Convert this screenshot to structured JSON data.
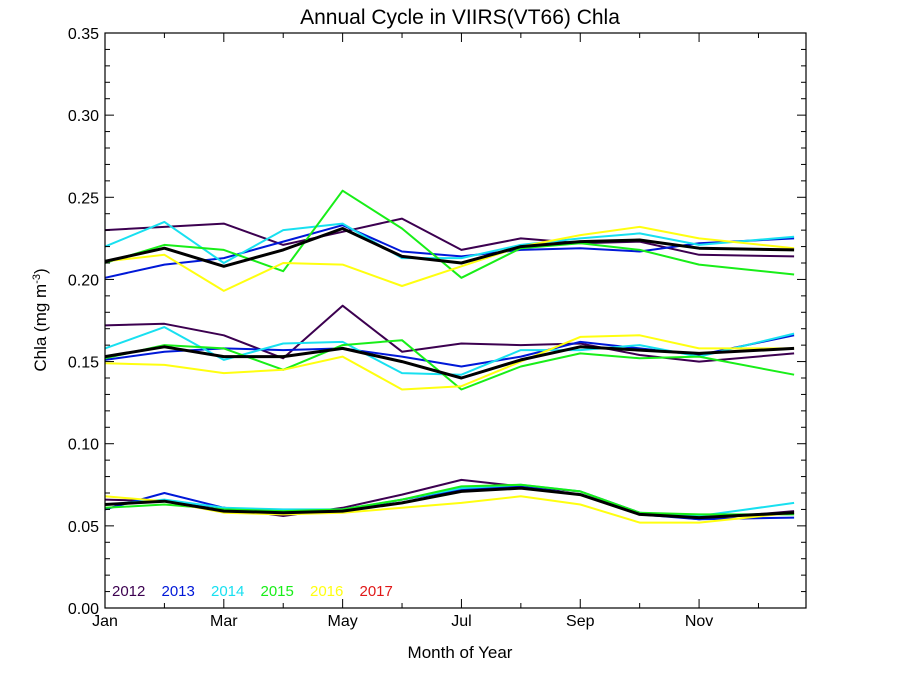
{
  "chart_data": {
    "type": "line",
    "title": "Annual Cycle in VIIRS(VT66) Chla",
    "xlabel": "Month of Year",
    "ylabel_main": "Chla (mg m",
    "ylabel_sup": "-3",
    "ylabel_close": ")",
    "ylim": [
      0,
      0.35
    ],
    "xlim": [
      1,
      12.8
    ],
    "x_tick_labels": [
      {
        "x": 1,
        "label": "Jan"
      },
      {
        "x": 3,
        "label": "Mar"
      },
      {
        "x": 5,
        "label": "May"
      },
      {
        "x": 7,
        "label": "Jul"
      },
      {
        "x": 9,
        "label": "Sep"
      },
      {
        "x": 11,
        "label": "Nov"
      }
    ],
    "y_tick_labels": [
      "0.00",
      "0.05",
      "0.10",
      "0.15",
      "0.20",
      "0.25",
      "0.30",
      "0.35"
    ],
    "x": [
      1,
      2,
      3,
      4,
      5,
      6,
      7,
      8,
      9,
      10,
      11,
      12.6
    ],
    "series": [
      {
        "name": "2012",
        "color": "#3c0050",
        "groups": [
          [
            0.23,
            0.232,
            0.234,
            0.221,
            0.229,
            0.237,
            0.218,
            0.225,
            0.222,
            0.223,
            0.215,
            0.214
          ],
          [
            0.172,
            0.173,
            0.166,
            0.152,
            0.184,
            0.156,
            0.161,
            0.16,
            0.161,
            0.154,
            0.15,
            0.155
          ],
          [
            0.066,
            0.065,
            0.061,
            0.056,
            0.061,
            0.069,
            0.078,
            0.074,
            0.071,
            0.058,
            0.054,
            0.059
          ]
        ]
      },
      {
        "name": "2013",
        "color": "#0018d8",
        "groups": [
          [
            0.201,
            0.209,
            0.213,
            0.223,
            0.233,
            0.217,
            0.214,
            0.218,
            0.219,
            0.217,
            0.222,
            0.225
          ],
          [
            0.151,
            0.156,
            0.158,
            0.157,
            0.158,
            0.153,
            0.147,
            0.153,
            0.162,
            0.158,
            0.154,
            0.166
          ],
          [
            0.06,
            0.07,
            0.061,
            0.058,
            0.059,
            0.066,
            0.072,
            0.074,
            0.069,
            0.057,
            0.054,
            0.055
          ]
        ]
      },
      {
        "name": "2014",
        "color": "#18e0f0",
        "groups": [
          [
            0.22,
            0.235,
            0.21,
            0.23,
            0.234,
            0.213,
            0.213,
            0.221,
            0.225,
            0.228,
            0.221,
            0.226
          ],
          [
            0.158,
            0.171,
            0.151,
            0.161,
            0.162,
            0.143,
            0.142,
            0.157,
            0.157,
            0.16,
            0.153,
            0.167
          ],
          [
            0.063,
            0.066,
            0.061,
            0.06,
            0.06,
            0.066,
            0.073,
            0.075,
            0.071,
            0.058,
            0.056,
            0.064
          ]
        ]
      },
      {
        "name": "2015",
        "color": "#18ee18",
        "groups": [
          [
            0.21,
            0.221,
            0.218,
            0.205,
            0.254,
            0.231,
            0.201,
            0.219,
            0.222,
            0.218,
            0.209,
            0.203
          ],
          [
            0.152,
            0.16,
            0.158,
            0.145,
            0.16,
            0.163,
            0.133,
            0.147,
            0.155,
            0.152,
            0.153,
            0.142
          ],
          [
            0.061,
            0.063,
            0.06,
            0.059,
            0.06,
            0.066,
            0.074,
            0.075,
            0.071,
            0.058,
            0.057,
            0.057
          ]
        ]
      },
      {
        "name": "2016",
        "color": "#ffff10",
        "groups": [
          [
            0.211,
            0.215,
            0.193,
            0.21,
            0.209,
            0.196,
            0.208,
            0.22,
            0.227,
            0.232,
            0.225,
            0.219
          ],
          [
            0.149,
            0.148,
            0.143,
            0.145,
            0.153,
            0.133,
            0.135,
            0.15,
            0.165,
            0.166,
            0.158,
            0.158
          ],
          [
            0.068,
            0.065,
            0.058,
            0.057,
            0.058,
            0.061,
            0.064,
            0.068,
            0.063,
            0.052,
            0.052,
            0.058
          ]
        ]
      },
      {
        "name": "2017",
        "color": "#e01818",
        "groups": []
      }
    ],
    "mean": {
      "color": "#000000",
      "groups": [
        [
          0.211,
          0.219,
          0.208,
          0.218,
          0.231,
          0.214,
          0.21,
          0.22,
          0.223,
          0.224,
          0.219,
          0.218
        ],
        [
          0.153,
          0.159,
          0.153,
          0.153,
          0.158,
          0.15,
          0.14,
          0.151,
          0.159,
          0.157,
          0.155,
          0.158
        ],
        [
          0.063,
          0.065,
          0.059,
          0.058,
          0.059,
          0.064,
          0.071,
          0.073,
          0.069,
          0.057,
          0.055,
          0.058
        ]
      ]
    }
  }
}
